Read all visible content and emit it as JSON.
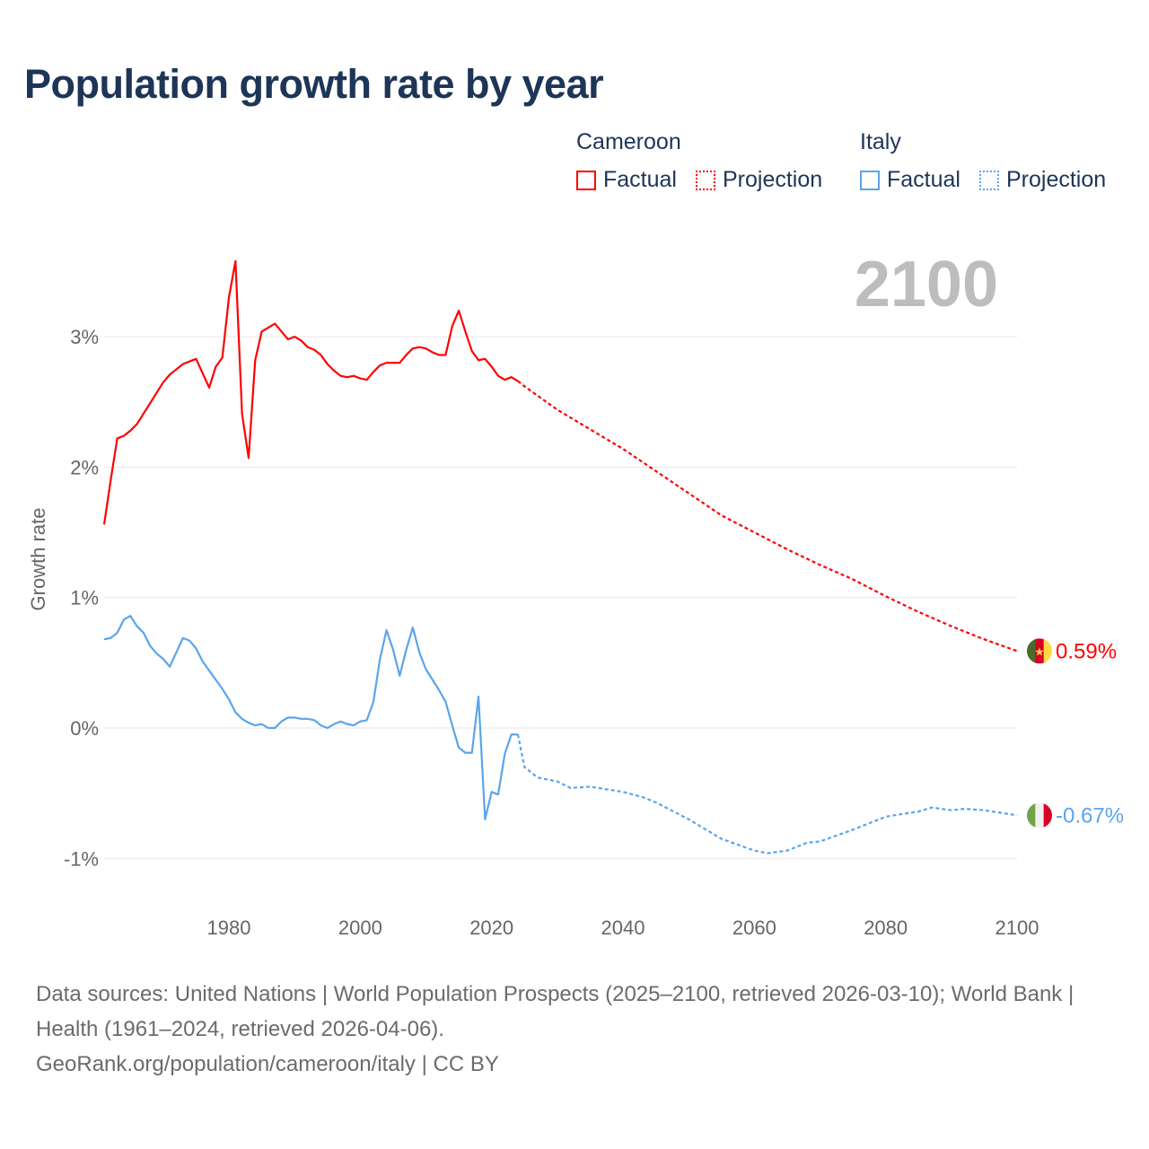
{
  "title": "Population growth rate by year",
  "current_year": "2100",
  "legend": [
    {
      "country": "Cameroon",
      "factual": "Factual",
      "projection": "Projection",
      "color": "#ff0000"
    },
    {
      "country": "Italy",
      "factual": "Factual",
      "projection": "Projection",
      "color": "#5aa5ea"
    }
  ],
  "footer": {
    "sources": "Data sources: United Nations | World Population Prospects (2025–2100, retrieved 2026-03-10); World Bank | Health (1961–2024, retrieved 2026-04-06).",
    "credit": "GeoRank.org/population/cameroon/italy | CC BY"
  },
  "chart_data": {
    "type": "line",
    "title": "Population growth rate by year",
    "xlabel": "",
    "ylabel": "Growth rate",
    "xlim": [
      1961,
      2100
    ],
    "ylim": [
      -1.1,
      3.7
    ],
    "x_ticks": [
      1980,
      2000,
      2020,
      2040,
      2060,
      2080,
      2100
    ],
    "x_tick_labels": [
      "1980",
      "2000",
      "2020",
      "2040",
      "2060",
      "2080",
      "2100"
    ],
    "y_ticks": [
      3,
      2,
      1,
      0,
      -1
    ],
    "y_tick_labels": [
      "3%",
      "2%",
      "1%",
      "0%",
      "-1%"
    ],
    "grid": true,
    "series": [
      {
        "name": "Cameroon",
        "color": "#ff0000",
        "end_label": "0.59%",
        "factual": {
          "start_year": 1961,
          "values": [
            1.56,
            1.9,
            2.22,
            2.24,
            2.28,
            2.33,
            2.41,
            2.49,
            2.57,
            2.65,
            2.71,
            2.75,
            2.79,
            2.81,
            2.83,
            2.72,
            2.61,
            2.77,
            2.84,
            3.3,
            3.58,
            2.41,
            2.07,
            2.82,
            3.04,
            3.07,
            3.1,
            3.04,
            2.98,
            3.0,
            2.97,
            2.92,
            2.9,
            2.86,
            2.79,
            2.74,
            2.7,
            2.69,
            2.7,
            2.68,
            2.67,
            2.73,
            2.78,
            2.8,
            2.8,
            2.8,
            2.86,
            2.91,
            2.92,
            2.91,
            2.88,
            2.86,
            2.86,
            3.08,
            3.2,
            3.04,
            2.89,
            2.82,
            2.83,
            2.77,
            2.7,
            2.67,
            2.69,
            2.66
          ]
        },
        "projection": {
          "x": [
            2024,
            2025,
            2030,
            2035,
            2040,
            2045,
            2050,
            2055,
            2060,
            2065,
            2070,
            2075,
            2080,
            2085,
            2090,
            2095,
            2100
          ],
          "values": [
            2.66,
            2.62,
            2.44,
            2.29,
            2.14,
            1.97,
            1.8,
            1.63,
            1.5,
            1.37,
            1.25,
            1.14,
            1.01,
            0.89,
            0.78,
            0.68,
            0.59
          ]
        }
      },
      {
        "name": "Italy",
        "color": "#5aa5ea",
        "end_label": "-0.67%",
        "factual": {
          "start_year": 1961,
          "values": [
            0.68,
            0.69,
            0.73,
            0.83,
            0.86,
            0.78,
            0.73,
            0.63,
            0.57,
            0.53,
            0.47,
            0.58,
            0.69,
            0.67,
            0.61,
            0.51,
            0.44,
            0.37,
            0.3,
            0.22,
            0.12,
            0.07,
            0.04,
            0.02,
            0.03,
            0.0,
            0.0,
            0.05,
            0.08,
            0.08,
            0.07,
            0.07,
            0.06,
            0.02,
            0.0,
            0.03,
            0.05,
            0.03,
            0.02,
            0.05,
            0.06,
            0.2,
            0.53,
            0.75,
            0.6,
            0.4,
            0.6,
            0.77,
            0.58,
            0.45,
            0.37,
            0.29,
            0.2,
            0.02,
            -0.15,
            -0.19,
            -0.19,
            0.24,
            -0.7,
            -0.49,
            -0.51,
            -0.2,
            -0.05,
            -0.05
          ]
        },
        "projection": {
          "x": [
            2024,
            2025,
            2027,
            2030,
            2032,
            2035,
            2040,
            2043,
            2045,
            2050,
            2055,
            2060,
            2062,
            2065,
            2068,
            2070,
            2075,
            2080,
            2085,
            2087,
            2090,
            2092,
            2095,
            2100
          ],
          "values": [
            -0.05,
            -0.3,
            -0.38,
            -0.41,
            -0.46,
            -0.45,
            -0.49,
            -0.53,
            -0.57,
            -0.7,
            -0.85,
            -0.94,
            -0.96,
            -0.94,
            -0.88,
            -0.87,
            -0.78,
            -0.68,
            -0.64,
            -0.61,
            -0.63,
            -0.62,
            -0.63,
            -0.67
          ]
        }
      }
    ]
  }
}
